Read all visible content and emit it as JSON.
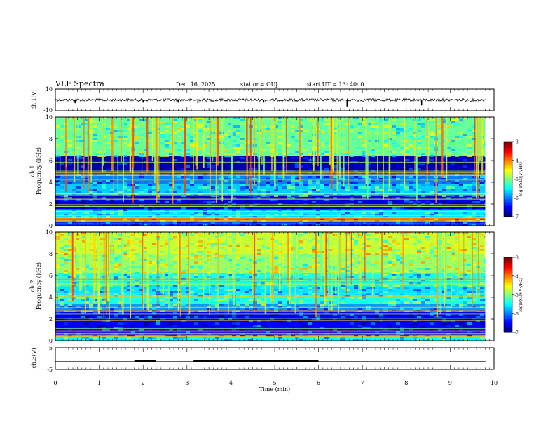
{
  "header": {
    "title": "VLF Spectra",
    "date": "Dec. 16, 2025",
    "station": "station= OUJ",
    "start_ut": "start  UT  =   13: 40: 0"
  },
  "chart_data": [
    {
      "type": "line",
      "panel": "ch1-waveform",
      "ylabel": "ch.1(V)",
      "ylim": [
        -10,
        10
      ],
      "y_ticks": [
        "10",
        "-10"
      ],
      "baseline": 0,
      "negative_spikes_x_min": [
        0.45,
        2.0,
        2.8,
        3.25,
        4.75,
        6.65,
        8.35
      ],
      "spike_depth_v": [
        -3,
        -2.5,
        -2.5,
        -3,
        -2.5,
        -6,
        -5
      ]
    },
    {
      "type": "heatmap",
      "panel": "ch1-spectrogram",
      "ylabel": "Frequency (kHz)",
      "channel_label": "ch.1",
      "ylim": [
        0,
        10
      ],
      "y_ticks": [
        "0",
        "2",
        "4",
        "6",
        "8",
        "10"
      ],
      "data_xlim_min": [
        0,
        9.8
      ],
      "colorbar": {
        "label": "log(PSD)(V²/Hz)",
        "range": [
          -7,
          -3
        ],
        "ticks": [
          "-3",
          "-4",
          "-5",
          "-6",
          "-7"
        ]
      },
      "bands": [
        {
          "from_khz": 0.0,
          "to_khz": 0.4,
          "level": -6.3
        },
        {
          "from_khz": 0.4,
          "to_khz": 0.8,
          "level": -3.9
        },
        {
          "from_khz": 0.8,
          "to_khz": 1.5,
          "level": -5.6
        },
        {
          "from_khz": 1.5,
          "to_khz": 2.8,
          "level": -6.6
        },
        {
          "from_khz": 2.8,
          "to_khz": 3.8,
          "level": -5.7
        },
        {
          "from_khz": 3.8,
          "to_khz": 4.8,
          "level": -6.0
        },
        {
          "from_khz": 4.8,
          "to_khz": 6.4,
          "level": -6.8
        },
        {
          "from_khz": 6.4,
          "to_khz": 10.0,
          "level": -5.1
        }
      ]
    },
    {
      "type": "heatmap",
      "panel": "ch2-spectrogram",
      "ylabel": "Frequency (kHz)",
      "channel_label": "ch.2",
      "ylim": [
        0,
        10
      ],
      "y_ticks": [
        "0",
        "2",
        "4",
        "6",
        "8",
        "10"
      ],
      "data_xlim_min": [
        0,
        9.8
      ],
      "colorbar": {
        "label": "log(PSD)(V²/Hz)",
        "range": [
          -7,
          -3
        ],
        "ticks": [
          "-3",
          "-4",
          "-5",
          "-6",
          "-7"
        ]
      },
      "bands": [
        {
          "from_khz": 0.0,
          "to_khz": 0.5,
          "level": -5.5
        },
        {
          "from_khz": 0.5,
          "to_khz": 2.8,
          "level": -6.5
        },
        {
          "from_khz": 2.8,
          "to_khz": 3.4,
          "level": -5.9
        },
        {
          "from_khz": 3.4,
          "to_khz": 4.2,
          "level": -5.4
        },
        {
          "from_khz": 4.2,
          "to_khz": 5.0,
          "level": -5.6
        },
        {
          "from_khz": 5.0,
          "to_khz": 6.2,
          "level": -5.4
        },
        {
          "from_khz": 6.2,
          "to_khz": 8.0,
          "level": -4.9
        },
        {
          "from_khz": 8.0,
          "to_khz": 10.0,
          "level": -4.7
        }
      ]
    },
    {
      "type": "line",
      "panel": "ch3-digital",
      "ylabel": "ch.3(V)",
      "ylim": [
        -5,
        5
      ],
      "y_ticks": [
        "5",
        "-5"
      ],
      "level_v": -1.5,
      "high_segments_min": [
        [
          1.8,
          2.3
        ],
        [
          3.15,
          6.0
        ]
      ],
      "high_level_v": -0.9
    }
  ],
  "x_axis": {
    "label": "Time  (min)",
    "xlim": [
      0,
      10
    ],
    "ticks": [
      "0",
      "1",
      "2",
      "3",
      "4",
      "5",
      "6",
      "7",
      "8",
      "9",
      "10"
    ]
  },
  "colors": {
    "waveform": "#000000",
    "colormap": [
      "#00007f",
      "#0000ff",
      "#007fff",
      "#00ffff",
      "#7fff7f",
      "#ffff00",
      "#ff7f00",
      "#ff0000",
      "#7f0000"
    ]
  }
}
